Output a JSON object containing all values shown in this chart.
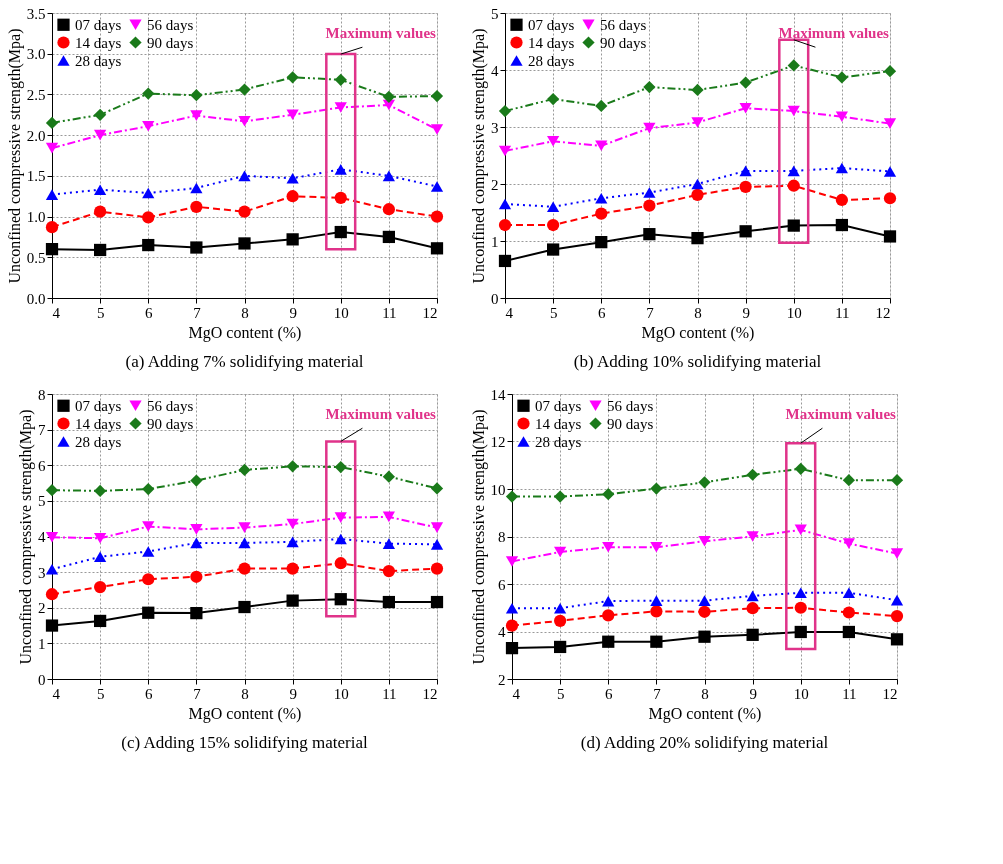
{
  "chart_data": [
    {
      "type": "line",
      "subtitle": "(a) Adding 7% solidifying material",
      "xlabel": "MgO content (%)",
      "ylabel": "Unconfined compressive strength(Mpa)",
      "x": [
        4,
        5,
        6,
        7,
        8,
        9,
        10,
        11,
        12
      ],
      "xlim": [
        4,
        12
      ],
      "xticks": [
        4,
        5,
        6,
        7,
        8,
        9,
        10,
        11,
        12
      ],
      "ylim": [
        0,
        3.5
      ],
      "yticks": [
        {
          "value": 0,
          "label": "0.0"
        },
        0.5,
        {
          "value": 1,
          "label": "1.0"
        },
        1.5,
        {
          "value": 2,
          "label": "2.0"
        },
        2.5,
        {
          "value": 3,
          "label": "3.0"
        },
        3.5
      ],
      "grid": true,
      "legend": "top left",
      "annotations": [
        "Maximum values"
      ],
      "series": [
        {
          "name": "07 days",
          "color": "#000000",
          "marker": "square",
          "line_style": "solid",
          "values": [
            0.6,
            0.59,
            0.65,
            0.62,
            0.67,
            0.72,
            0.81,
            0.75,
            0.61
          ]
        },
        {
          "name": "14 days",
          "color": "#ff0000",
          "marker": "circle",
          "line_style": "dashed",
          "values": [
            0.87,
            1.06,
            0.99,
            1.12,
            1.06,
            1.25,
            1.23,
            1.09,
            1.0
          ]
        },
        {
          "name": "28 days",
          "color": "#0000ff",
          "marker": "triangle",
          "line_style": "dotted",
          "values": [
            1.27,
            1.33,
            1.29,
            1.35,
            1.5,
            1.47,
            1.58,
            1.5,
            1.37
          ]
        },
        {
          "name": "56 days",
          "color": "#ff00ff",
          "marker": "triangle-down",
          "line_style": "dashdot",
          "values": [
            1.84,
            2.0,
            2.11,
            2.24,
            2.17,
            2.25,
            2.34,
            2.37,
            2.07
          ]
        },
        {
          "name": "90 days",
          "color": "#1a7a1a",
          "marker": "diamond",
          "line_style": "dashdotdot",
          "values": [
            2.15,
            2.25,
            2.51,
            2.49,
            2.56,
            2.71,
            2.68,
            2.47,
            2.48
          ]
        }
      ]
    },
    {
      "type": "line",
      "subtitle": "(b) Adding 10% solidifying material",
      "xlabel": "MgO content (%)",
      "ylabel": "Unconfined compressive strength(Mpa)",
      "x": [
        4,
        5,
        6,
        7,
        8,
        9,
        10,
        11,
        12
      ],
      "xlim": [
        4,
        12
      ],
      "xticks": [
        4,
        5,
        6,
        7,
        8,
        9,
        10,
        11,
        12
      ],
      "ylim": [
        0,
        5
      ],
      "yticks": [
        0,
        1,
        2,
        3,
        4,
        5
      ],
      "grid": true,
      "legend": "top left",
      "annotations": [
        "Maximum values"
      ],
      "series": [
        {
          "name": "07 days",
          "color": "#000000",
          "marker": "square",
          "line_style": "solid",
          "values": [
            0.65,
            0.85,
            0.98,
            1.12,
            1.05,
            1.17,
            1.27,
            1.28,
            1.08
          ]
        },
        {
          "name": "14 days",
          "color": "#ff0000",
          "marker": "circle",
          "line_style": "dashed",
          "values": [
            1.28,
            1.28,
            1.48,
            1.62,
            1.81,
            1.95,
            1.97,
            1.72,
            1.75
          ]
        },
        {
          "name": "28 days",
          "color": "#0000ff",
          "marker": "triangle",
          "line_style": "dotted",
          "values": [
            1.65,
            1.6,
            1.75,
            1.85,
            2.0,
            2.23,
            2.23,
            2.28,
            2.22
          ]
        },
        {
          "name": "56 days",
          "color": "#ff00ff",
          "marker": "triangle-down",
          "line_style": "dashdot",
          "values": [
            2.58,
            2.75,
            2.67,
            2.98,
            3.08,
            3.33,
            3.28,
            3.18,
            3.06
          ]
        },
        {
          "name": "90 days",
          "color": "#1a7a1a",
          "marker": "diamond",
          "line_style": "dashdotdot",
          "values": [
            3.28,
            3.49,
            3.37,
            3.7,
            3.65,
            3.78,
            4.08,
            3.87,
            3.98
          ]
        }
      ]
    },
    {
      "type": "line",
      "subtitle": "(c) Adding 15% solidifying material",
      "xlabel": "MgO content (%)",
      "ylabel": "Unconfined compressive strength(Mpa)",
      "x": [
        4,
        5,
        6,
        7,
        8,
        9,
        10,
        11,
        12
      ],
      "xlim": [
        4,
        12
      ],
      "xticks": [
        4,
        5,
        6,
        7,
        8,
        9,
        10,
        11,
        12
      ],
      "ylim": [
        0,
        8
      ],
      "yticks": [
        0,
        1,
        2,
        3,
        4,
        5,
        6,
        7,
        8
      ],
      "grid": true,
      "legend": "top left",
      "annotations": [
        "Maximum values"
      ],
      "series": [
        {
          "name": "07 days",
          "color": "#000000",
          "marker": "square",
          "line_style": "solid",
          "values": [
            1.5,
            1.63,
            1.86,
            1.85,
            2.02,
            2.2,
            2.24,
            2.16,
            2.16
          ]
        },
        {
          "name": "14 days",
          "color": "#ff0000",
          "marker": "circle",
          "line_style": "dashed",
          "values": [
            2.38,
            2.58,
            2.8,
            2.87,
            3.1,
            3.1,
            3.25,
            3.03,
            3.1
          ]
        },
        {
          "name": "28 days",
          "color": "#0000ff",
          "marker": "triangle",
          "line_style": "dotted",
          "values": [
            3.08,
            3.43,
            3.58,
            3.82,
            3.82,
            3.85,
            3.93,
            3.8,
            3.78
          ]
        },
        {
          "name": "56 days",
          "color": "#ff00ff",
          "marker": "triangle-down",
          "line_style": "dashdot",
          "values": [
            3.98,
            3.95,
            4.28,
            4.2,
            4.25,
            4.35,
            4.53,
            4.55,
            4.25
          ]
        },
        {
          "name": "90 days",
          "color": "#1a7a1a",
          "marker": "diamond",
          "line_style": "dashdotdot",
          "values": [
            5.3,
            5.28,
            5.33,
            5.57,
            5.87,
            5.97,
            5.95,
            5.68,
            5.35
          ]
        }
      ]
    },
    {
      "type": "line",
      "subtitle": "(d) Adding 20% solidifying material",
      "xlabel": "MgO content (%)",
      "ylabel": "Unconfined compressive strength(Mpa)",
      "x": [
        4,
        5,
        6,
        7,
        8,
        9,
        10,
        11,
        12
      ],
      "xlim": [
        4,
        12
      ],
      "xticks": [
        4,
        5,
        6,
        7,
        8,
        9,
        10,
        11,
        12
      ],
      "ylim": [
        2,
        14
      ],
      "yticks": [
        2,
        4,
        6,
        8,
        10,
        12,
        14
      ],
      "grid": true,
      "legend": "top left",
      "annotations": [
        "Maximum values"
      ],
      "series": [
        {
          "name": "07 days",
          "color": "#000000",
          "marker": "square",
          "line_style": "solid",
          "values": [
            3.3,
            3.35,
            3.57,
            3.57,
            3.78,
            3.86,
            3.98,
            3.98,
            3.67
          ]
        },
        {
          "name": "14 days",
          "color": "#ff0000",
          "marker": "circle",
          "line_style": "dashed",
          "values": [
            4.25,
            4.45,
            4.68,
            4.85,
            4.83,
            4.98,
            5.0,
            4.8,
            4.65
          ]
        },
        {
          "name": "28 days",
          "color": "#0000ff",
          "marker": "triangle",
          "line_style": "dotted",
          "values": [
            4.98,
            4.98,
            5.28,
            5.3,
            5.3,
            5.5,
            5.63,
            5.63,
            5.32
          ]
        },
        {
          "name": "56 days",
          "color": "#ff00ff",
          "marker": "triangle-down",
          "line_style": "dashdot",
          "values": [
            6.95,
            7.35,
            7.55,
            7.55,
            7.8,
            8.0,
            8.28,
            7.7,
            7.28
          ]
        },
        {
          "name": "90 days",
          "color": "#1a7a1a",
          "marker": "diamond",
          "line_style": "dashdotdot",
          "values": [
            9.68,
            9.68,
            9.78,
            10.02,
            10.28,
            10.6,
            10.85,
            10.37,
            10.37
          ]
        }
      ]
    }
  ]
}
